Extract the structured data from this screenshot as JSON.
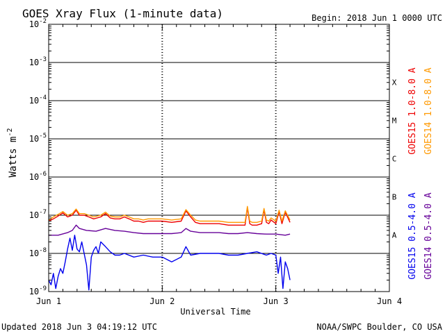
{
  "title": "GOES Xray Flux (1-minute data)",
  "begin_label": "Begin:  2018 Jun 1 0000 UTC",
  "updated_label": "Updated 2018 Jun  3 04:19:12 UTC",
  "credit_label": "NOAA/SWPC Boulder, CO USA",
  "chart_data": {
    "type": "line",
    "title": "GOES Xray Flux (1-minute data)",
    "xlabel": "Universal Time",
    "ylabel_text": "Watts m",
    "ylabel_sup": "-2",
    "yscale": "log",
    "ylim": [
      1e-09,
      0.01
    ],
    "xlim": [
      0,
      72
    ],
    "x_unit": "hours since 2018 Jun 1 0000 UTC",
    "x_ticks": [
      {
        "x": 0,
        "label": "Jun 1"
      },
      {
        "x": 24,
        "label": "Jun 2"
      },
      {
        "x": 48,
        "label": "Jun 3"
      },
      {
        "x": 72,
        "label": "Jun 4"
      }
    ],
    "y_ticks": [
      {
        "base": "10",
        "exp": "-9",
        "value": 1e-09
      },
      {
        "base": "10",
        "exp": "-8",
        "value": 1e-08
      },
      {
        "base": "10",
        "exp": "-7",
        "value": 1e-07
      },
      {
        "base": "10",
        "exp": "-6",
        "value": 1e-06
      },
      {
        "base": "10",
        "exp": "-5",
        "value": 1e-05
      },
      {
        "base": "10",
        "exp": "-4",
        "value": 0.0001
      },
      {
        "base": "10",
        "exp": "-3",
        "value": 0.001
      },
      {
        "base": "10",
        "exp": "-2",
        "value": 0.01
      }
    ],
    "flare_classes": [
      {
        "label": "A",
        "value": 1e-08
      },
      {
        "label": "B",
        "value": 1e-07
      },
      {
        "label": "C",
        "value": 1e-06
      },
      {
        "label": "M",
        "value": 1e-05
      },
      {
        "label": "X",
        "value": 0.0001
      }
    ],
    "class_thresholds": [
      1e-07,
      1e-06,
      1e-05,
      0.0001,
      0.001
    ],
    "grid": "horizontal lines at 1e-8 to 1e-3; dotted vertical lines at day boundaries",
    "legend": [
      {
        "label": "GOES15 1.0-8.0 A",
        "color": "#ee0000"
      },
      {
        "label": "GOES14 1.0-8.0 A",
        "color": "#ff9900"
      },
      {
        "label": "GOES15 0.5-4.0 A",
        "color": "#0000ee"
      },
      {
        "label": "GOES14 0.5-4.0 A",
        "color": "#660099"
      }
    ],
    "series": [
      {
        "name": "GOES15 1.0-8.0 A",
        "color": "#ee0000",
        "x": [
          0,
          1,
          2,
          3,
          4,
          5,
          5.8,
          6.5,
          7.5,
          8.5,
          9.5,
          11,
          12,
          13,
          14,
          15,
          16,
          17,
          18,
          19,
          20,
          21,
          22,
          23,
          24,
          26,
          28,
          29,
          30,
          31,
          32,
          34,
          36,
          38,
          40,
          41.5,
          42,
          42.5,
          43,
          44,
          45,
          45.5,
          46,
          46.5,
          47,
          48,
          48.7,
          49.3,
          50,
          51
        ],
        "y": [
          7e-08,
          8e-08,
          9.5e-08,
          1.15e-07,
          9e-08,
          1e-07,
          1.35e-07,
          1e-07,
          1e-07,
          9e-08,
          8e-08,
          9e-08,
          1.1e-07,
          8.5e-08,
          8e-08,
          8e-08,
          9e-08,
          8e-08,
          7e-08,
          7e-08,
          6.5e-08,
          7e-08,
          7e-08,
          7e-08,
          7e-08,
          6.5e-08,
          7e-08,
          1.3e-07,
          9e-08,
          6.5e-08,
          6e-08,
          6e-08,
          6e-08,
          5.5e-08,
          5.5e-08,
          5.5e-08,
          1.6e-07,
          6e-08,
          5.5e-08,
          5.5e-08,
          6e-08,
          1.4e-07,
          6.5e-08,
          6e-08,
          7.5e-08,
          6e-08,
          1.25e-07,
          6e-08,
          1.2e-07,
          6.5e-08
        ]
      },
      {
        "name": "GOES14 1.0-8.0 A",
        "color": "#ff9900",
        "x": [
          0,
          1,
          2,
          3,
          4,
          5,
          5.8,
          6.5,
          7.5,
          8.5,
          9.5,
          11,
          12,
          13,
          14,
          15,
          16,
          17,
          18,
          19,
          20,
          21,
          22,
          23,
          24,
          26,
          28,
          29,
          30,
          31,
          32,
          34,
          36,
          38,
          40,
          41.5,
          42,
          42.5,
          43,
          44,
          45,
          45.5,
          46,
          46.5,
          47,
          48,
          48.7,
          49.3,
          50,
          51
        ],
        "y": [
          7.5e-08,
          9e-08,
          1.05e-07,
          1.25e-07,
          1e-07,
          1.1e-07,
          1.45e-07,
          1.1e-07,
          1.1e-07,
          1e-07,
          9e-08,
          1e-07,
          1.2e-07,
          9.5e-08,
          9e-08,
          9e-08,
          1e-07,
          9e-08,
          8e-08,
          8e-08,
          7.5e-08,
          8e-08,
          8e-08,
          8e-08,
          8e-08,
          7.5e-08,
          8e-08,
          1.4e-07,
          1e-07,
          7.5e-08,
          7e-08,
          7e-08,
          7e-08,
          6.5e-08,
          6.5e-08,
          6.5e-08,
          1.7e-07,
          7e-08,
          6.5e-08,
          6.5e-08,
          7e-08,
          1.5e-07,
          7.5e-08,
          7e-08,
          8.5e-08,
          7e-08,
          1.35e-07,
          7e-08,
          1.3e-07,
          7.5e-08
        ]
      },
      {
        "name": "GOES14 0.5-4.0 A",
        "color": "#660099",
        "x": [
          0,
          2,
          4,
          5,
          5.8,
          6.5,
          8,
          10,
          12,
          14,
          16,
          18,
          20,
          22,
          24,
          26,
          28,
          29,
          30,
          32,
          34,
          36,
          38,
          40,
          42,
          44,
          46,
          48,
          50,
          51
        ],
        "y": [
          3e-08,
          3e-08,
          3.5e-08,
          4e-08,
          5.5e-08,
          4.5e-08,
          4e-08,
          3.8e-08,
          4.5e-08,
          4e-08,
          3.8e-08,
          3.5e-08,
          3.3e-08,
          3.3e-08,
          3.3e-08,
          3.3e-08,
          3.5e-08,
          4.5e-08,
          3.8e-08,
          3.5e-08,
          3.5e-08,
          3.5e-08,
          3.3e-08,
          3.3e-08,
          3.5e-08,
          3.3e-08,
          3.2e-08,
          3.2e-08,
          3e-08,
          3.2e-08
        ]
      },
      {
        "name": "GOES15 0.5-4.0 A",
        "color": "#0000ee",
        "x": [
          0,
          0.5,
          1,
          1.5,
          2,
          2.5,
          3,
          3.5,
          4,
          4.5,
          5,
          5.5,
          6,
          6.5,
          7,
          7.5,
          8,
          8.5,
          9,
          9.5,
          10,
          10.5,
          11,
          12,
          13,
          14,
          15,
          16,
          18,
          20,
          22,
          24,
          26,
          28,
          29,
          30,
          32,
          34,
          36,
          38,
          40,
          42,
          44,
          46,
          47,
          48,
          48.5,
          49,
          49.5,
          50,
          50.5,
          51
        ],
        "y": [
          2e-09,
          1.5e-09,
          3e-09,
          1.2e-09,
          2.5e-09,
          4e-09,
          3e-09,
          6e-09,
          1.3e-08,
          2.5e-08,
          1.2e-08,
          3e-08,
          1.3e-08,
          1.1e-08,
          2e-08,
          1e-08,
          5e-09,
          1.1e-09,
          8e-09,
          1.2e-08,
          1.5e-08,
          1e-08,
          2e-08,
          1.5e-08,
          1.1e-08,
          9e-09,
          9e-09,
          1e-08,
          8e-09,
          9e-09,
          8e-09,
          8e-09,
          6e-09,
          8e-09,
          1.5e-08,
          9e-09,
          1e-08,
          1e-08,
          1e-08,
          9e-09,
          9e-09,
          1e-08,
          1.1e-08,
          9e-09,
          1e-08,
          9e-09,
          3e-09,
          8e-09,
          1.2e-09,
          6e-09,
          4e-09,
          2e-09
        ]
      }
    ]
  }
}
